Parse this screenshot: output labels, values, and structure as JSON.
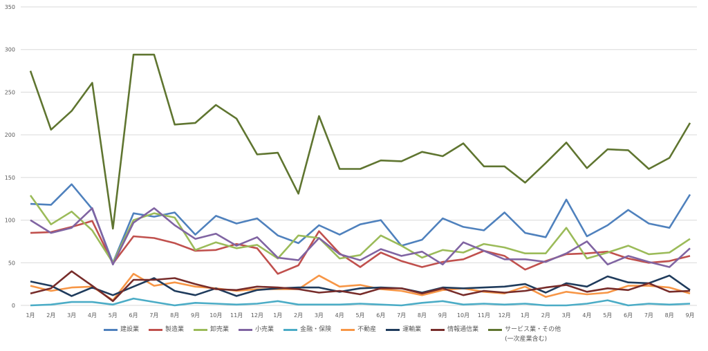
{
  "chart_data": {
    "type": "line",
    "title": "",
    "xlabel": "",
    "ylabel": "",
    "ylim": [
      0,
      350
    ],
    "yticks": [
      0,
      50,
      100,
      150,
      200,
      250,
      300,
      350
    ],
    "grid": true,
    "legend_position": "bottom",
    "categories": [
      "1月",
      "2月",
      "3月",
      "4月",
      "5月",
      "6月",
      "7月",
      "8月",
      "9月",
      "10月",
      "11月",
      "12月",
      "1月",
      "2月",
      "3月",
      "4月",
      "5月",
      "6月",
      "7月",
      "8月",
      "9月",
      "10月",
      "11月",
      "12月",
      "1月",
      "2月",
      "3月",
      "4月",
      "5月",
      "6月",
      "7月",
      "8月",
      "9月"
    ],
    "series": [
      {
        "name": "建設業",
        "color": "#4f81bd",
        "values": [
          119,
          118,
          142,
          113,
          50,
          108,
          104,
          109,
          83,
          105,
          96,
          102,
          82,
          73,
          94,
          83,
          95,
          100,
          70,
          77,
          102,
          92,
          88,
          109,
          85,
          80,
          124,
          81,
          94,
          112,
          96,
          91,
          130
        ]
      },
      {
        "name": "製造業",
        "color": "#c0504d",
        "values": [
          85,
          86,
          92,
          99,
          49,
          81,
          79,
          73,
          64,
          65,
          72,
          67,
          37,
          47,
          87,
          61,
          45,
          62,
          52,
          45,
          51,
          54,
          64,
          58,
          42,
          52,
          60,
          61,
          63,
          55,
          50,
          52,
          58
        ]
      },
      {
        "name": "卸売業",
        "color": "#9bbb59",
        "values": [
          129,
          95,
          110,
          88,
          50,
          100,
          108,
          103,
          65,
          74,
          67,
          71,
          55,
          82,
          79,
          55,
          59,
          82,
          70,
          56,
          65,
          62,
          72,
          68,
          61,
          61,
          91,
          55,
          62,
          70,
          60,
          62,
          78
        ]
      },
      {
        "name": "小売業",
        "color": "#8064a2",
        "values": [
          100,
          85,
          91,
          114,
          48,
          97,
          114,
          94,
          78,
          84,
          70,
          80,
          56,
          53,
          79,
          60,
          53,
          66,
          58,
          63,
          48,
          74,
          64,
          54,
          54,
          51,
          61,
          75,
          48,
          58,
          51,
          45,
          67
        ]
      },
      {
        "name": "金融・保険",
        "color": "#4bacc6",
        "values": [
          0,
          1,
          4,
          4,
          1,
          8,
          4,
          0,
          3,
          2,
          1,
          2,
          5,
          1,
          1,
          1,
          2,
          1,
          0,
          3,
          5,
          1,
          2,
          1,
          2,
          0,
          0,
          2,
          6,
          0,
          2,
          1,
          2
        ]
      },
      {
        "name": "不動産",
        "color": "#f79646",
        "values": [
          23,
          17,
          21,
          22,
          6,
          37,
          23,
          27,
          22,
          20,
          17,
          19,
          19,
          19,
          35,
          22,
          24,
          19,
          17,
          12,
          18,
          20,
          16,
          14,
          22,
          10,
          16,
          13,
          15,
          23,
          23,
          21,
          14
        ]
      },
      {
        "name": "運輸業",
        "color": "#1f3b5c",
        "values": [
          28,
          23,
          11,
          21,
          12,
          22,
          32,
          17,
          12,
          20,
          11,
          18,
          20,
          21,
          21,
          16,
          20,
          21,
          20,
          15,
          21,
          20,
          21,
          22,
          25,
          15,
          26,
          22,
          34,
          27,
          26,
          35,
          18
        ]
      },
      {
        "name": "情報通信業",
        "color": "#772c2a",
        "values": [
          14,
          20,
          40,
          23,
          5,
          30,
          30,
          32,
          25,
          19,
          18,
          22,
          21,
          19,
          15,
          17,
          13,
          20,
          20,
          14,
          20,
          12,
          17,
          15,
          17,
          21,
          24,
          16,
          20,
          18,
          26,
          16,
          17
        ]
      },
      {
        "name": "サービス業・その他",
        "name_line2": "(一次産業含む)",
        "color": "#5f7530",
        "values": [
          275,
          206,
          228,
          261,
          90,
          294,
          294,
          212,
          214,
          235,
          219,
          177,
          179,
          131,
          222,
          160,
          160,
          170,
          169,
          180,
          175,
          190,
          163,
          163,
          144,
          167,
          191,
          161,
          183,
          182,
          160,
          173,
          214
        ]
      }
    ]
  }
}
